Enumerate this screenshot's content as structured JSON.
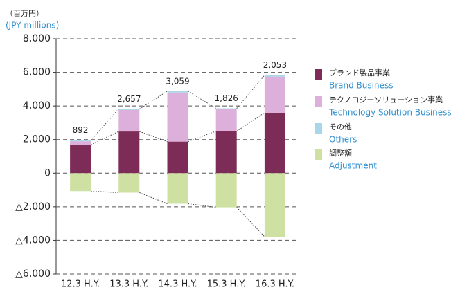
{
  "chart_data": {
    "type": "stacked_bar",
    "unit_label": "（百万円）",
    "unit_label_en": "(JPY millions)",
    "categories": [
      "12.3 H.Y.",
      "13.3 H.Y.",
      "14.3 H.Y.",
      "15.3 H.Y.",
      "16.3 H.Y."
    ],
    "series": [
      {
        "name": "ブランド製品事業",
        "name_en": "Brand Business",
        "color": "#7d2c58",
        "values": [
          1700,
          2480,
          1880,
          2500,
          3600
        ]
      },
      {
        "name": "テクノロジーソリューション事業",
        "name_en": "Technology Solution Business",
        "color": "#ddb0db",
        "values": [
          200,
          1280,
          2920,
          1300,
          2150
        ]
      },
      {
        "name": "その他",
        "name_en": "Others",
        "color": "#a9d7ea",
        "values": [
          60,
          60,
          80,
          60,
          80
        ]
      },
      {
        "name": "調整額",
        "name_en": "Adjustment",
        "color": "#cfe0a3",
        "values": [
          -1070,
          -1160,
          -1820,
          -2030,
          -3780
        ]
      }
    ],
    "totals": [
      892,
      2657,
      3059,
      1826,
      2053
    ],
    "total_labels": [
      "892",
      "2,657",
      "3,059",
      "1,826",
      "2,053"
    ],
    "ylim": [
      -6000,
      8000
    ],
    "yticks": [
      {
        "value": -6000,
        "label": "△6,000"
      },
      {
        "value": -4000,
        "label": "△4,000"
      },
      {
        "value": -2000,
        "label": "△2,000"
      },
      0,
      {
        "value": 2000,
        "label": "2,000"
      },
      {
        "value": 4000,
        "label": "4,000"
      },
      {
        "value": 6000,
        "label": "6,000"
      },
      {
        "value": 8000,
        "label": "8,000"
      }
    ],
    "grid": true
  }
}
